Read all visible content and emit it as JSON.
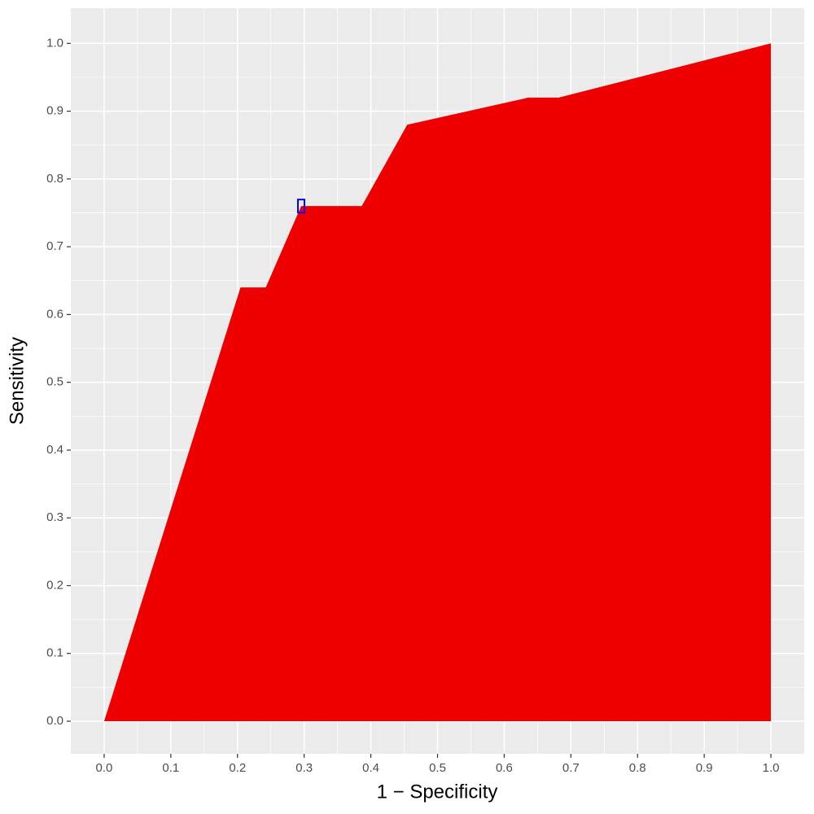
{
  "chart_data": {
    "type": "area",
    "x_label": "1 − Specificity",
    "y_label": "Sensitivity",
    "x": [
      0,
      0.2045,
      0.2424,
      0.2955,
      0.3864,
      0.4545,
      0.6364,
      0.6818,
      1
    ],
    "values": [
      0,
      0.64,
      0.64,
      0.76,
      0.76,
      0.88,
      0.92,
      0.92,
      1
    ],
    "color": "#ee0000",
    "highlight_point": {
      "x": 0.2955,
      "y": 0.76,
      "color": "#0000ff"
    },
    "xlim": [
      -0.05,
      1.05
    ],
    "ylim": [
      -0.048,
      1.052
    ],
    "xticks": [
      {
        "value": 0,
        "label": "0.0"
      },
      0.1,
      0.2,
      0.3,
      0.4,
      0.5,
      0.6,
      0.7,
      0.8,
      0.9,
      {
        "value": 1,
        "label": "1.0"
      }
    ],
    "yticks": [
      {
        "value": 0,
        "label": "0.0"
      },
      0.1,
      0.2,
      0.3,
      0.4,
      0.5,
      0.6,
      0.7,
      0.8,
      0.9,
      {
        "value": 1,
        "label": "1.0"
      }
    ],
    "grid": true
  }
}
